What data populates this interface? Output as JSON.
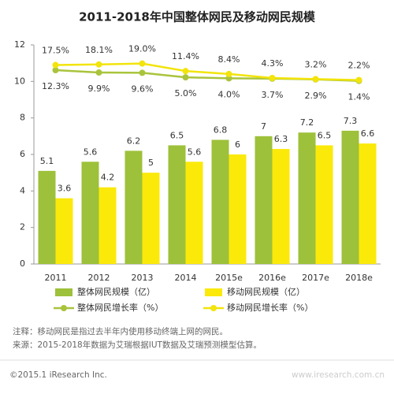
{
  "chart_data": {
    "type": "bar",
    "title": "2011-2018年中国整体网民及移动网民规模",
    "categories": [
      "2011",
      "2012",
      "2013",
      "2014",
      "2015e",
      "2016e",
      "2017e",
      "2018e"
    ],
    "ylim": [
      0,
      12
    ],
    "yticks": [
      0,
      2,
      4,
      6,
      8,
      10,
      12
    ],
    "y2lim": [
      -185,
      38
    ],
    "grid": false,
    "series": [
      {
        "name": "整体网民规模（亿）",
        "type": "bar",
        "color": "#9dc13a",
        "values": [
          5.1,
          5.6,
          6.2,
          6.5,
          6.8,
          7.0,
          7.2,
          7.3
        ]
      },
      {
        "name": "移动网民规模（亿）",
        "type": "bar",
        "color": "#fbe90a",
        "values": [
          3.6,
          4.2,
          5.0,
          5.6,
          6.0,
          6.3,
          6.5,
          6.6
        ]
      },
      {
        "name": "整体网民增长率（%）",
        "type": "line",
        "axis": "y2",
        "color": "#a9c43c",
        "values": [
          12.3,
          9.9,
          9.6,
          5.0,
          4.0,
          3.7,
          2.9,
          1.4
        ],
        "value_labels": [
          "12.3%",
          "9.9%",
          "9.6%",
          "5.0%",
          "4.0%",
          "3.7%",
          "2.9%",
          "1.4%"
        ]
      },
      {
        "name": "移动网民增长率（%）",
        "type": "line",
        "axis": "y2",
        "color": "#f2e40c",
        "values": [
          17.5,
          18.1,
          19.0,
          11.4,
          8.4,
          4.3,
          3.2,
          2.2
        ],
        "value_labels": [
          "17.5%",
          "18.1%",
          "19.0%",
          "11.4%",
          "8.4%",
          "4.3%",
          "3.2%",
          "2.2%"
        ]
      }
    ]
  },
  "notes": [
    "注释：移动网民是指过去半年内使用移动终端上网的网民。",
    "来源：2015-2018年数据为艾瑞根据IUT数据及艾瑞预测模型估算。"
  ],
  "copyright": "©2015.1 iResearch Inc.",
  "watermark": "www.iresearch.com.cn"
}
